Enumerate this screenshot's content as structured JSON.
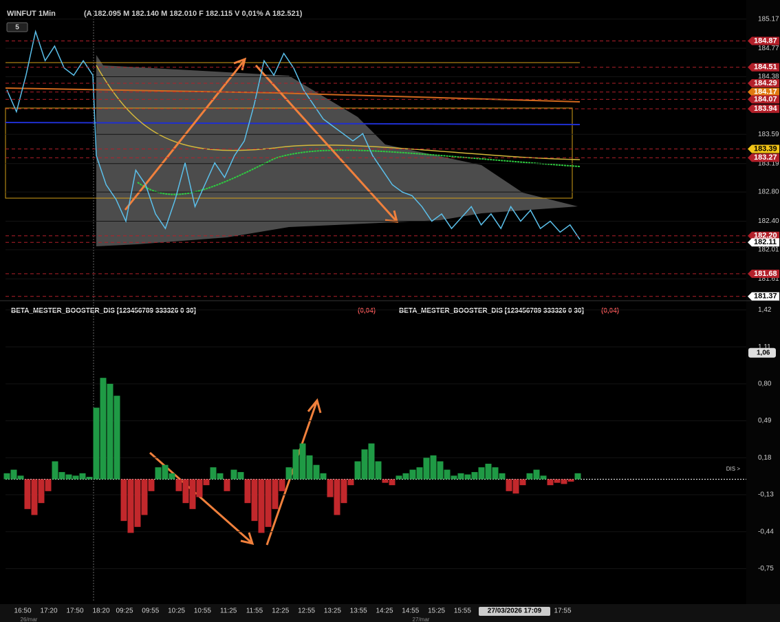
{
  "header": {
    "symbol": "WINFUT 1Min",
    "quote": "(A 182.095 M 182.140 M 182.010 F 182.115 V 0,01% A 182.521)",
    "period_badge": "5"
  },
  "price_chart": {
    "type": "line",
    "color": "#5bc0eb",
    "ylim": [
      181.33,
      185.29
    ],
    "yticks": [
      185.17,
      184.77,
      184.38,
      183.59,
      183.19,
      {
        "value": 182.8,
        "label": "182.80"
      },
      {
        "value": 182.4,
        "label": "182.40"
      },
      182.01,
      181.61
    ],
    "values": [
      184.2,
      183.9,
      184.4,
      185.0,
      184.6,
      184.8,
      184.5,
      184.4,
      184.6,
      184.4,
      183.3,
      182.9,
      182.7,
      182.4,
      183.1,
      182.9,
      182.5,
      182.3,
      182.7,
      183.2,
      182.6,
      182.9,
      183.2,
      183.0,
      183.3,
      183.5,
      184.0,
      184.6,
      184.4,
      184.7,
      184.5,
      184.2,
      184.0,
      183.8,
      183.7,
      183.6,
      183.5,
      183.6,
      183.3,
      183.1,
      182.9,
      182.8,
      182.75,
      182.6,
      182.4,
      182.5,
      182.3,
      182.45,
      182.6,
      182.35,
      182.5,
      182.3,
      182.6,
      182.4,
      182.55,
      182.3,
      182.4,
      182.25,
      182.35,
      182.15
    ],
    "levels": [
      {
        "value": 184.87,
        "color": "#b3202a"
      },
      {
        "value": 184.51,
        "color": "#b3202a"
      },
      {
        "value": 184.29,
        "color": "#b3202a"
      },
      {
        "value": 184.17,
        "color": "#e07a10"
      },
      {
        "value": 184.07,
        "color": "#b3202a"
      },
      {
        "value": 183.94,
        "color": "#b3202a"
      },
      {
        "value": 183.39,
        "color": "#f2c417"
      },
      {
        "value": 183.27,
        "color": "#b3202a"
      },
      {
        "value": 182.2,
        "label": "182.20",
        "color": "#b3202a"
      },
      {
        "value": 182.11,
        "color": "#ffffff"
      },
      {
        "value": 181.68,
        "color": "#b3202a"
      },
      {
        "value": 181.37,
        "color": "#ffffff"
      }
    ]
  },
  "indicator": {
    "type": "bar",
    "title": "BETA_MESTER_BOOSTER_DIS [123456789 333326 0 30]",
    "value_text": "(0,04)",
    "zero_label": "DIS >",
    "up_color": "#1f9a45",
    "down_color": "#c2282c",
    "ylim": [
      -1.03,
      1.48
    ],
    "yticks": [
      {
        "value": 1.42,
        "label": "1,42"
      },
      {
        "value": 1.11,
        "label": "1,11"
      },
      {
        "value": 0.8,
        "label": "0,80"
      },
      {
        "value": 0.49,
        "label": "0,49"
      },
      {
        "value": 0.18,
        "label": "0,18"
      },
      {
        "value": -0.13,
        "label": "-0,13"
      },
      {
        "value": -0.44,
        "label": "-0,44"
      },
      {
        "value": -0.75,
        "label": "-0,75"
      }
    ],
    "current": {
      "value": 1.06,
      "label": "1,06"
    },
    "values": [
      0.05,
      0.08,
      0.03,
      -0.25,
      -0.3,
      -0.2,
      -0.1,
      0.15,
      0.06,
      0.04,
      0.03,
      0.05,
      0.02,
      0.6,
      0.85,
      0.8,
      0.7,
      -0.35,
      -0.45,
      -0.4,
      -0.3,
      -0.1,
      0.1,
      0.12,
      0.05,
      -0.1,
      -0.2,
      -0.25,
      -0.15,
      -0.05,
      0.1,
      0.05,
      -0.1,
      0.08,
      0.06,
      -0.2,
      -0.35,
      -0.45,
      -0.4,
      -0.25,
      -0.1,
      0.1,
      0.25,
      0.3,
      0.2,
      0.12,
      0.05,
      -0.15,
      -0.3,
      -0.2,
      -0.05,
      0.15,
      0.25,
      0.3,
      0.15,
      -0.03,
      -0.05,
      0.03,
      0.05,
      0.08,
      0.1,
      0.18,
      0.2,
      0.15,
      0.08,
      0.03,
      0.05,
      0.04,
      0.06,
      0.1,
      0.13,
      0.1,
      0.05,
      -0.1,
      -0.12,
      -0.05,
      0.05,
      0.08,
      0.03,
      -0.05,
      -0.03,
      -0.04,
      -0.02,
      0.05
    ]
  },
  "time_axis": {
    "labels": [
      "16:50",
      "17:20",
      "17:50",
      "18:20",
      "09:25",
      "09:55",
      "10:25",
      "10:55",
      "11:25",
      "11:55",
      "12:25",
      "12:55",
      "13:25",
      "13:55",
      "14:25",
      "14:55",
      "15:25",
      "15:55",
      "27/03/2026 17:09",
      "17:55"
    ],
    "days": [
      "26/mar",
      "27/mar"
    ]
  }
}
